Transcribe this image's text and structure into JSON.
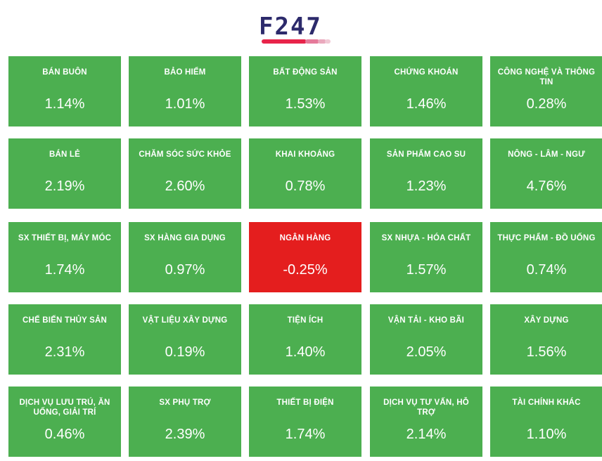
{
  "logo": {
    "text": "F247",
    "text_color": "#2c2a6b",
    "bar_colors": [
      "#e8244a",
      "#e57a9a",
      "#eaa9bd",
      "#f0c8d4"
    ]
  },
  "colors": {
    "up": "#4caf50",
    "down": "#e41e1e"
  },
  "sectors": [
    {
      "name": "BÁN BUÔN",
      "value": "1.14%",
      "trend": "up"
    },
    {
      "name": "BẢO HIỂM",
      "value": "1.01%",
      "trend": "up"
    },
    {
      "name": "BẤT ĐỘNG SẢN",
      "value": "1.53%",
      "trend": "up"
    },
    {
      "name": "CHỨNG KHOÁN",
      "value": "1.46%",
      "trend": "up"
    },
    {
      "name": "CÔNG NGHỆ VÀ THÔNG TIN",
      "value": "0.28%",
      "trend": "up"
    },
    {
      "name": "BÁN LẺ",
      "value": "2.19%",
      "trend": "up"
    },
    {
      "name": "CHĂM SÓC SỨC KHỎE",
      "value": "2.60%",
      "trend": "up"
    },
    {
      "name": "KHAI KHOÁNG",
      "value": "0.78%",
      "trend": "up"
    },
    {
      "name": "SẢN PHẨM CAO SU",
      "value": "1.23%",
      "trend": "up"
    },
    {
      "name": "NÔNG - LÂM - NGƯ",
      "value": "4.76%",
      "trend": "up"
    },
    {
      "name": "SX THIẾT BỊ, MÁY MÓC",
      "value": "1.74%",
      "trend": "up"
    },
    {
      "name": "SX HÀNG GIA DỤNG",
      "value": "0.97%",
      "trend": "up"
    },
    {
      "name": "NGÂN HÀNG",
      "value": "-0.25%",
      "trend": "down"
    },
    {
      "name": "SX NHỰA - HÓA CHẤT",
      "value": "1.57%",
      "trend": "up"
    },
    {
      "name": "THỰC PHẨM - ĐỒ UỐNG",
      "value": "0.74%",
      "trend": "up"
    },
    {
      "name": "CHẾ BIẾN THỦY SẢN",
      "value": "2.31%",
      "trend": "up"
    },
    {
      "name": "VẬT LIỆU XÂY DỰNG",
      "value": "0.19%",
      "trend": "up"
    },
    {
      "name": "TIỆN ÍCH",
      "value": "1.40%",
      "trend": "up"
    },
    {
      "name": "VẬN TẢI - KHO BÃI",
      "value": "2.05%",
      "trend": "up"
    },
    {
      "name": "XÂY DỰNG",
      "value": "1.56%",
      "trend": "up"
    },
    {
      "name": "DỊCH VỤ LƯU TRÚ, ĂN UỐNG, GIẢI TRÍ",
      "value": "0.46%",
      "trend": "up"
    },
    {
      "name": "SX PHỤ TRỢ",
      "value": "2.39%",
      "trend": "up"
    },
    {
      "name": "THIẾT BỊ ĐIỆN",
      "value": "1.74%",
      "trend": "up"
    },
    {
      "name": "DỊCH VỤ TƯ VẤN, HỖ TRỢ",
      "value": "2.14%",
      "trend": "up"
    },
    {
      "name": "TÀI CHÍNH KHÁC",
      "value": "1.10%",
      "trend": "up"
    }
  ]
}
